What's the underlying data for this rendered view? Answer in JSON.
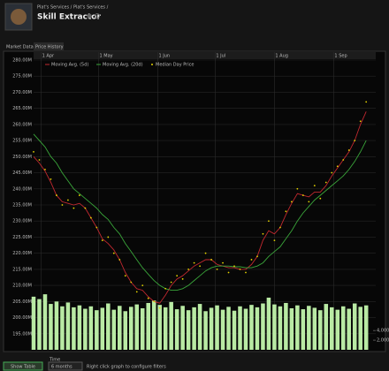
{
  "header": {
    "breadcrumb": "Plat's Services / Plat's Services /",
    "title": "Skill Extractor"
  },
  "tabs": [
    "Market Data",
    "Price History"
  ],
  "footer": {
    "button": "Show Table",
    "time_label": "Time",
    "time_value": "6 months",
    "hint": "Right click graph to configure filters"
  },
  "chart_data": {
    "type": "line",
    "x": [
      -4,
      -1,
      2,
      5,
      8,
      11,
      14,
      17,
      20,
      23,
      26,
      29,
      32,
      35,
      38,
      41,
      44,
      47,
      50,
      53,
      56,
      59,
      62,
      65,
      68,
      71,
      74,
      77,
      80,
      83,
      86,
      89,
      92,
      95,
      98,
      101,
      104,
      107,
      110,
      113,
      116,
      119,
      122,
      125,
      128,
      131,
      134,
      137,
      140,
      143,
      146,
      149,
      152,
      155,
      158,
      161,
      164,
      167,
      170
    ],
    "series": [
      {
        "name": "Moving Avg. (5d)",
        "type": "line",
        "color": "#c0282f",
        "values": [
          250,
          248,
          245.5,
          242,
          238,
          236,
          235.5,
          235,
          235.5,
          234,
          231,
          228,
          224.5,
          223,
          221,
          218,
          214,
          211,
          209,
          208.5,
          206.5,
          205,
          204.5,
          207,
          210,
          212,
          213,
          214.5,
          216,
          217,
          218,
          218,
          216.5,
          216,
          215.5,
          215.5,
          215,
          215,
          216.5,
          219,
          224,
          227,
          226,
          228,
          232,
          235.5,
          238.5,
          238,
          237.5,
          239,
          239,
          241,
          244,
          246.5,
          249,
          251.5,
          255,
          260,
          264
        ]
      },
      {
        "name": "Moving Avg. (20d)",
        "type": "line",
        "color": "#3aa53a",
        "values": [
          257,
          255,
          253,
          250,
          248,
          245,
          242.5,
          240,
          238.5,
          237,
          235.5,
          234,
          232,
          230.5,
          228,
          226,
          223,
          220.5,
          218,
          215.5,
          213.5,
          211.5,
          210,
          209,
          208.5,
          208.5,
          209,
          210,
          211.5,
          213,
          214.5,
          215.5,
          216,
          216,
          216,
          215.8,
          215.8,
          215.5,
          215.5,
          216,
          217,
          219,
          220.5,
          222,
          224.5,
          227,
          230,
          232.5,
          234.5,
          236.5,
          238,
          239.5,
          241,
          242.5,
          244,
          246,
          248.5,
          251.5,
          255
        ]
      },
      {
        "name": "Median Day Price",
        "type": "scatter",
        "color": "#e5d400",
        "values": [
          251.5,
          249,
          246,
          243,
          238,
          235,
          236.5,
          234,
          238,
          234,
          231,
          228,
          224,
          225,
          220,
          218,
          213,
          211,
          208,
          210,
          206,
          205,
          203,
          209,
          211,
          213,
          212,
          215,
          217,
          216,
          220,
          218,
          215,
          217,
          214,
          216,
          215,
          214,
          218,
          219,
          226,
          230,
          224,
          228,
          233,
          236,
          240,
          238,
          236,
          241,
          237,
          242,
          245,
          247,
          249,
          252,
          255,
          261,
          267
        ]
      }
    ],
    "volume": {
      "axis": "y2",
      "color": "#b9eaa4",
      "values": [
        11000,
        10500,
        11500,
        9500,
        10000,
        9000,
        9800,
        8800,
        9200,
        8500,
        9000,
        8200,
        8700,
        9600,
        8300,
        9100,
        8000,
        8900,
        9400,
        8600,
        9700,
        10200,
        9300,
        8800,
        9900,
        8400,
        9100,
        8200,
        8800,
        9500,
        8000,
        8700,
        9200,
        8300,
        8900,
        8100,
        9000,
        8500,
        9300,
        8800,
        9600,
        10800,
        9400,
        9000,
        9700,
        8600,
        9200,
        8400,
        9100,
        8700,
        8200,
        9500,
        8800,
        8300,
        9000,
        8500,
        9600,
        8900,
        9200
      ]
    },
    "xlim": [
      -4,
      175
    ],
    "xticks": [
      {
        "value": 0,
        "label": "1 Apr"
      },
      {
        "value": 30,
        "label": "1 May"
      },
      {
        "value": 61,
        "label": "1 Jun"
      },
      {
        "value": 91,
        "label": "1 Jul"
      },
      {
        "value": 122,
        "label": "1 Aug"
      },
      {
        "value": 153,
        "label": "1 Sep"
      }
    ],
    "ylim": [
      190,
      280
    ],
    "yticks": [
      {
        "value": 195,
        "label": "195.00M"
      },
      {
        "value": 200,
        "label": "200.00M"
      },
      {
        "value": 205,
        "label": "205.00M"
      },
      {
        "value": 210,
        "label": "210.00M"
      },
      {
        "value": 215,
        "label": "215.00M"
      },
      {
        "value": 220,
        "label": "220.00M"
      },
      {
        "value": 225,
        "label": "225.00M"
      },
      {
        "value": 230,
        "label": "230.00M"
      },
      {
        "value": 235,
        "label": "235.00M"
      },
      {
        "value": 240,
        "label": "240.00M"
      },
      {
        "value": 245,
        "label": "245.00M"
      },
      {
        "value": 250,
        "label": "250.00M"
      },
      {
        "value": 255,
        "label": "255.00M"
      },
      {
        "value": 260,
        "label": "260.00M"
      },
      {
        "value": 265,
        "label": "265.00M"
      },
      {
        "value": 270,
        "label": "270.00M"
      },
      {
        "value": 275,
        "label": "275.00M"
      },
      {
        "value": 280,
        "label": "280.00M"
      }
    ],
    "y2lim": [
      0,
      60000
    ],
    "y2ticks": [
      {
        "value": 2000,
        "label": "2,000"
      },
      {
        "value": 4000,
        "label": "4,000"
      }
    ],
    "grid": true
  }
}
